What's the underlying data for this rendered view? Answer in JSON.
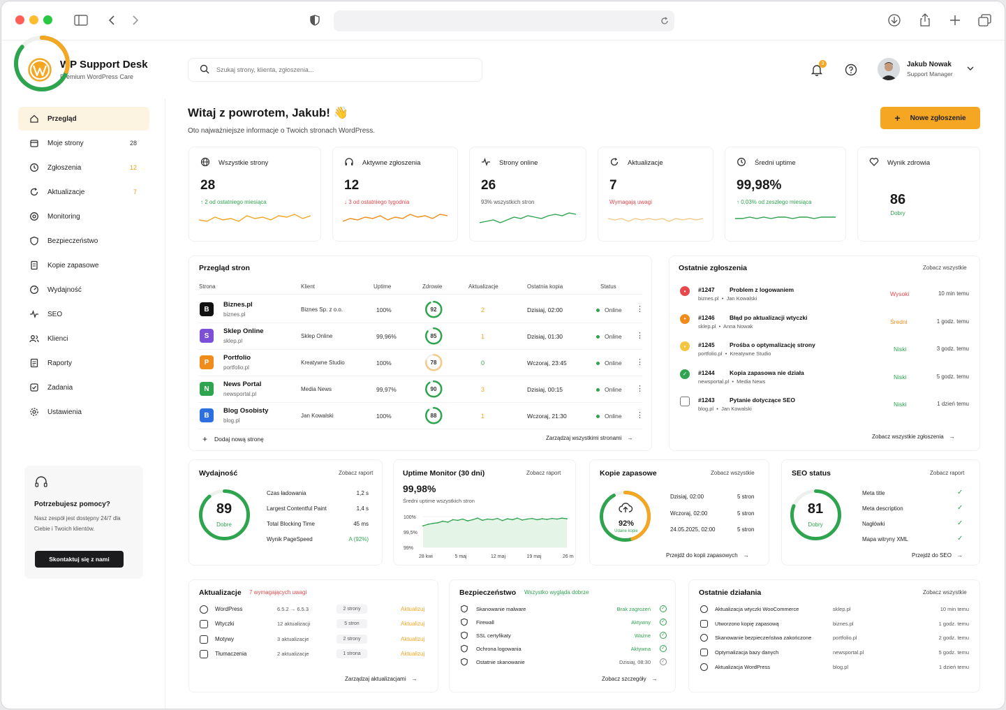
{
  "brand": {
    "title": "WP Support Desk",
    "subtitle": "Premium WordPress Care"
  },
  "search": {
    "placeholder": "Szukaj strony, klienta, zgłoszenia..."
  },
  "notifications": {
    "count": "3"
  },
  "user": {
    "name": "Jakub Nowak",
    "role": "Support Manager"
  },
  "colors": {
    "accent": "#f5a623",
    "green": "#2fa44f",
    "red": "#e5484d",
    "orange": "#f08c1a"
  },
  "sidebar": {
    "items": [
      {
        "label": "Przegląd",
        "icon": "home-icon",
        "count": ""
      },
      {
        "label": "Moje strony",
        "icon": "calendar-icon",
        "count": "28"
      },
      {
        "label": "Zgłoszenia",
        "icon": "clock-icon",
        "count": "12"
      },
      {
        "label": "Aktualizacje",
        "icon": "refresh-icon",
        "count": "7"
      },
      {
        "label": "Monitoring",
        "icon": "monitor-icon",
        "count": ""
      },
      {
        "label": "Bezpieczeństwo",
        "icon": "shield-icon",
        "count": ""
      },
      {
        "label": "Kopie zapasowe",
        "icon": "file-icon",
        "count": ""
      },
      {
        "label": "Wydajność",
        "icon": "gauge-icon",
        "count": ""
      },
      {
        "label": "SEO",
        "icon": "pulse-icon",
        "count": ""
      },
      {
        "label": "Klienci",
        "icon": "users-icon",
        "count": ""
      },
      {
        "label": "Raporty",
        "icon": "report-icon",
        "count": ""
      },
      {
        "label": "Zadania",
        "icon": "checkbox-icon",
        "count": ""
      },
      {
        "label": "Ustawienia",
        "icon": "gear-icon",
        "count": ""
      }
    ]
  },
  "help": {
    "title": "Potrzebujesz pomocy?",
    "text": "Nasz zespół jest dostępny 24/7 dla Ciebie i Twoich klientów.",
    "button": "Skontaktuj się z nami"
  },
  "welcome": {
    "title": "Witaj z powrotem, Jakub! 👋",
    "subtitle": "Oto najważniejsze informacje o Twoich stronach WordPress.",
    "new_button": "Nowe zgłoszenie"
  },
  "kpis": [
    {
      "title": "Wszystkie strony",
      "value": "28",
      "sub": "↑ 2 od ostatniego miesiąca",
      "sub_color": "#2fa44f"
    },
    {
      "title": "Aktywne zgłoszenia",
      "value": "12",
      "sub": "↓ 3 od ostatniego tygodnia",
      "sub_color": "#e5484d"
    },
    {
      "title": "Strony online",
      "value": "26",
      "sub": "93% wszystkich stron",
      "sub_color": "#555"
    },
    {
      "title": "Aktualizacje",
      "value": "7",
      "sub": "Wymagają uwagi",
      "sub_color": "#e5484d"
    },
    {
      "title": "Średni uptime",
      "value": "99,98%",
      "sub": "↑ 0,03% od zeszłego miesiąca",
      "sub_color": "#2fa44f"
    },
    {
      "title": "Wynik zdrowia",
      "value": "86",
      "sub": "Dobry"
    }
  ],
  "sites": {
    "title": "Przegląd stron",
    "headers": [
      "Strona",
      "Klient",
      "Uptime",
      "Zdrowie",
      "Aktualizacje",
      "Ostatnia kopia",
      "Status"
    ],
    "rows": [
      {
        "letter": "B",
        "name": "Biznes.pl",
        "domain": "biznes.pl",
        "client": "Biznes Sp. z o.o.",
        "uptime": "100%",
        "health": "92",
        "updates": "2",
        "backup": "Dzisiaj,  02:00",
        "status": "Online",
        "color": "#111111"
      },
      {
        "letter": "S",
        "name": "Sklep Online",
        "domain": "sklep.pl",
        "client": "Sklep Online",
        "uptime": "99,96%",
        "health": "85",
        "updates": "1",
        "backup": "Dzisiaj,  01:30",
        "status": "Online",
        "color": "#7b4fd6"
      },
      {
        "letter": "P",
        "name": "Portfolio",
        "domain": "portfolio.pl",
        "client": "Kreatywne Studio",
        "uptime": "100%",
        "health": "78",
        "updates": "0",
        "backup": "Wczoraj, 23:45",
        "status": "Online",
        "color": "#f08c1a"
      },
      {
        "letter": "N",
        "name": "News Portal",
        "domain": "newsportal.pl",
        "client": "Media News",
        "uptime": "99,97%",
        "health": "90",
        "updates": "3",
        "backup": "Dzisiaj,  00:15",
        "status": "Online",
        "color": "#2fa44f"
      },
      {
        "letter": "B",
        "name": "Blog Osobisty",
        "domain": "blog.pl",
        "client": "Jan Kowalski",
        "uptime": "100%",
        "health": "88",
        "updates": "1",
        "backup": "Wczoraj, 21:30",
        "status": "Online",
        "color": "#2d6fe0"
      }
    ],
    "add_label": "Dodaj nową stronę",
    "manage_label": "Zarządzaj wszystkimi stronami"
  },
  "tickets": {
    "title": "Ostatnie zgłoszenia",
    "see_all": "Zobacz wszystkie",
    "rows": [
      {
        "id": "#1247",
        "title": "Problem z logowaniem",
        "site": "biznes.pl",
        "person": "Jan Kowalski",
        "priority": "Wysoki",
        "time": "10 min temu",
        "pcolor": "#e5484d"
      },
      {
        "id": "#1246",
        "title": "Błąd po aktualizacji wtyczki",
        "site": "sklep.pl",
        "person": "Anna Nowak",
        "priority": "Średni",
        "time": "1 godz. temu",
        "pcolor": "#f08c1a"
      },
      {
        "id": "#1245",
        "title": "Prośba o optymalizację strony",
        "site": "portfolio.pl",
        "person": "Kreatywne Studio",
        "priority": "Niski",
        "time": "3 godz. temu",
        "pcolor": "#2fa44f"
      },
      {
        "id": "#1244",
        "title": "Kopia zapasowa nie działa",
        "site": "newsportal.pl",
        "person": "Media News",
        "priority": "Niski",
        "time": "5 godz. temu",
        "pcolor": "#2fa44f"
      },
      {
        "id": "#1243",
        "title": "Pytanie dotyczące SEO",
        "site": "blog.pl",
        "person": "Jan Kowalski",
        "priority": "Niski",
        "time": "1 dzień temu",
        "pcolor": "#2fa44f"
      }
    ],
    "all_link": "Zobacz wszystkie zgłoszenia"
  },
  "performance": {
    "title": "Wydajność",
    "link": "Zobacz raport",
    "score": "89",
    "label": "Dobre",
    "metrics": [
      {
        "k": "Czas ładowania",
        "v": "1,2 s"
      },
      {
        "k": "Largest Contentful Paint",
        "v": "1,4 s"
      },
      {
        "k": "Total Blocking Time",
        "v": "45 ms"
      },
      {
        "k": "Wynik PageSpeed",
        "v": "A (92%)"
      }
    ]
  },
  "uptime": {
    "title": "Uptime Monitor (30 dni)",
    "link": "Zobacz raport",
    "value": "99,98%",
    "sub": "Średni uptime wszystkich stron",
    "ylabels": [
      "100%",
      "99,5%",
      "99%"
    ],
    "xlabels": [
      "28 kwi",
      "5 maj",
      "12 maj",
      "19 maj",
      "26 maj"
    ]
  },
  "chart_data": {
    "type": "line",
    "title": "Uptime Monitor (30 dni)",
    "ylim": [
      99,
      100
    ],
    "yticks": [
      "100%",
      "99,5%",
      "99%"
    ],
    "xticks": [
      "28 kwi",
      "5 maj",
      "12 maj",
      "19 maj",
      "26 maj"
    ],
    "values": [
      99.7,
      99.75,
      99.78,
      99.8,
      99.85,
      99.82,
      99.9,
      99.88,
      99.92,
      99.86,
      99.9,
      99.95,
      99.88,
      99.92,
      99.9,
      99.94,
      99.87,
      99.93,
      99.9,
      99.95,
      99.89,
      99.92,
      99.94,
      99.9,
      99.93,
      99.91,
      99.94,
      99.92,
      99.95,
      99.93
    ]
  },
  "backups": {
    "title": "Kopie zapasowe",
    "link": "Zobacz wszystkie",
    "percent": "92%",
    "label": "Udane kopie",
    "rows": [
      {
        "date": "Dzisiaj, 02:00",
        "count": "5 stron"
      },
      {
        "date": "Wczoraj, 02:00",
        "count": "5 stron"
      },
      {
        "date": "24.05.2025, 02:00",
        "count": "5 stron"
      }
    ],
    "footer": "Przejdź do kopii zapasowych"
  },
  "seo": {
    "title": "SEO status",
    "link": "Zobacz raport",
    "score": "81",
    "label": "Dobry",
    "items": [
      "Meta title",
      "Meta description",
      "Nagłówki",
      "Mapa witryny XML"
    ],
    "footer": "Przejdź do SEO"
  },
  "updates": {
    "title": "Aktualizacje",
    "badge": "7 wymagających uwagi",
    "rows": [
      {
        "name": "WordPress",
        "info": "6.5.2 → 6.5.3",
        "count": "2 strony",
        "action": "Aktualizuj"
      },
      {
        "name": "Wtyczki",
        "info": "12 aktualizacji",
        "count": "5 stron",
        "action": "Aktualizuj"
      },
      {
        "name": "Motywy",
        "info": "3 aktualizacje",
        "count": "2 strony",
        "action": "Aktualizuj"
      },
      {
        "name": "Tłumaczenia",
        "info": "2 aktualizacje",
        "count": "1 strona",
        "action": "Aktualizuj"
      }
    ],
    "footer": "Zarządzaj aktualizacjami"
  },
  "security": {
    "title": "Bezpieczeństwo",
    "badge": "Wszystko wygląda dobrze",
    "rows": [
      {
        "name": "Skanowanie malware",
        "status": "Brak zagrożeń"
      },
      {
        "name": "Firewall",
        "status": "Aktywny"
      },
      {
        "name": "SSL certyfikaty",
        "status": "Ważne"
      },
      {
        "name": "Ochrona logowania",
        "status": "Aktywna"
      },
      {
        "name": "Ostatnie skanowanie",
        "status": "Dzisiaj, 08:30"
      }
    ],
    "footer": "Zobacz szczegóły"
  },
  "activity": {
    "title": "Ostatnie działania",
    "link": "Zobacz wszystkie",
    "rows": [
      {
        "name": "Aktualizacja wtyczki WooCommerce",
        "site": "sklep.pl",
        "time": "10 min temu"
      },
      {
        "name": "Utworzono kopię zapasową",
        "site": "biznes.pl",
        "time": "1 godz. temu"
      },
      {
        "name": "Skanowanie bezpieczeństwa zakończone",
        "site": "portfolio.pl",
        "time": "2 godz. temu"
      },
      {
        "name": "Optymalizacja bazy danych",
        "site": "newsportal.pl",
        "time": "5 godz. temu"
      },
      {
        "name": "Aktualizacja WordPress",
        "site": "blog.pl",
        "time": "1 dzień temu"
      }
    ]
  }
}
